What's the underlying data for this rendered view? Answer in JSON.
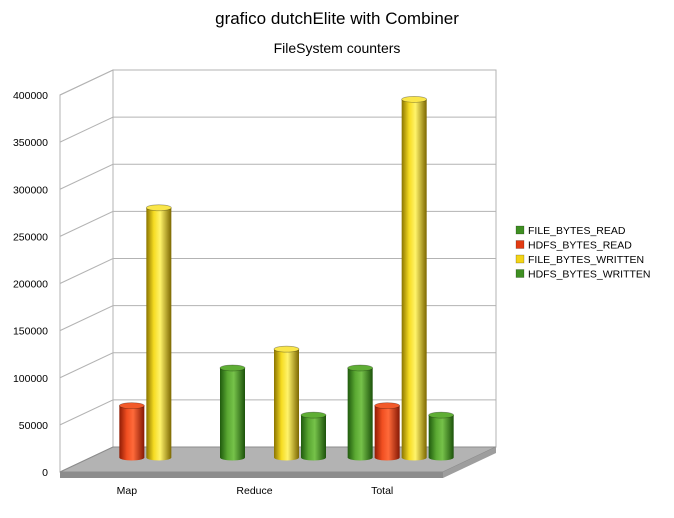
{
  "chart_data": {
    "type": "bar",
    "title": "grafico dutchElite with Combiner",
    "subtitle": "FileSystem counters",
    "xlabel": "",
    "ylabel": "",
    "categories": [
      "Map",
      "Reduce",
      "Total"
    ],
    "ylim": [
      0,
      400000
    ],
    "yticks": [
      0,
      50000,
      100000,
      150000,
      200000,
      250000,
      300000,
      350000,
      400000
    ],
    "ytick_labels": [
      "0",
      "50000",
      "100000",
      "150000",
      "200000",
      "250000",
      "300000",
      "350000",
      "400000"
    ],
    "grid": true,
    "legend_position": "right",
    "series": [
      {
        "name": "FILE_BYTES_READ",
        "color": "#3f8f22",
        "values": [
          0,
          95000,
          95000
        ]
      },
      {
        "name": "HDFS_BYTES_READ",
        "color": "#e23b12",
        "values": [
          55000,
          0,
          55000
        ]
      },
      {
        "name": "FILE_BYTES_WRITTEN",
        "color": "#f3d417",
        "values": [
          265000,
          115000,
          380000
        ]
      },
      {
        "name": "HDFS_BYTES_WRITTEN",
        "color": "#3f8f22",
        "values": [
          0,
          45000,
          45000
        ]
      }
    ]
  }
}
